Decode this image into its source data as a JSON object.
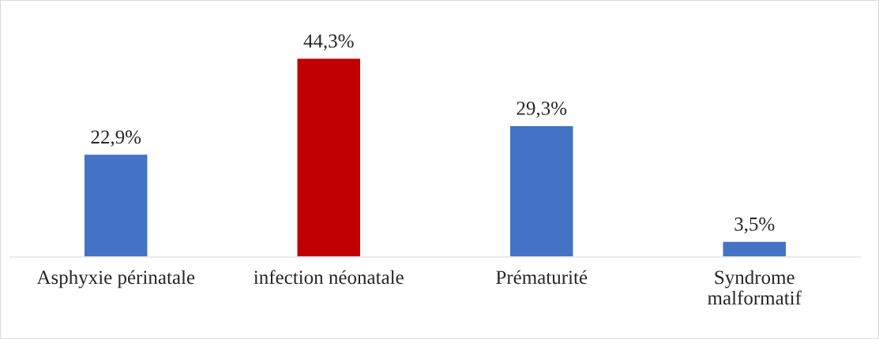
{
  "chart_data": {
    "type": "bar",
    "categories": [
      "Asphyxie périnatale",
      "infection néonatale",
      "Prématurité",
      "Syndrome\nmalformatif"
    ],
    "values": [
      22.9,
      44.3,
      29.3,
      3.5
    ],
    "colors": [
      "#4472c4",
      "#c00000",
      "#4472c4",
      "#4472c4"
    ],
    "value_labels": [
      "22,9%",
      "44,3%",
      "29,3%",
      "3,5%"
    ],
    "grid": false,
    "legend": false
  }
}
